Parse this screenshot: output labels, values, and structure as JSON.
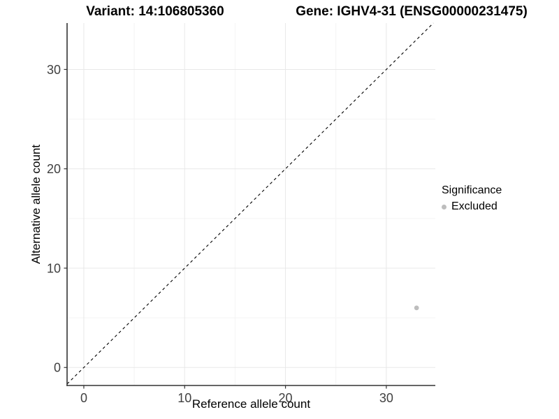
{
  "titles": {
    "left": "Variant: 14:106805360",
    "right": "Gene: IGHV4-31 (ENSG00000231475)"
  },
  "chart_data": {
    "type": "scatter",
    "xlabel": "Reference allele count",
    "ylabel": "Alternative allele count",
    "xlim": [
      -1.66,
      34.86
    ],
    "ylim": [
      -1.81,
      34.67
    ],
    "x_ticks": [
      0,
      10,
      20,
      30
    ],
    "y_ticks": [
      0,
      10,
      20,
      30
    ],
    "x_minor_ticks": [
      5,
      15,
      25
    ],
    "y_minor_ticks": [
      5,
      15,
      25
    ],
    "grid": "on",
    "reference_line": {
      "kind": "identity y=x",
      "style": "dashed",
      "color": "#000000"
    },
    "series": [
      {
        "name": "Excluded",
        "color": "#bdbdbd",
        "points": [
          {
            "x": 33,
            "y": 6
          }
        ]
      }
    ],
    "legend": {
      "title": "Significance",
      "position": "right",
      "items": [
        {
          "label": "Excluded",
          "color": "#bdbdbd"
        }
      ]
    }
  }
}
